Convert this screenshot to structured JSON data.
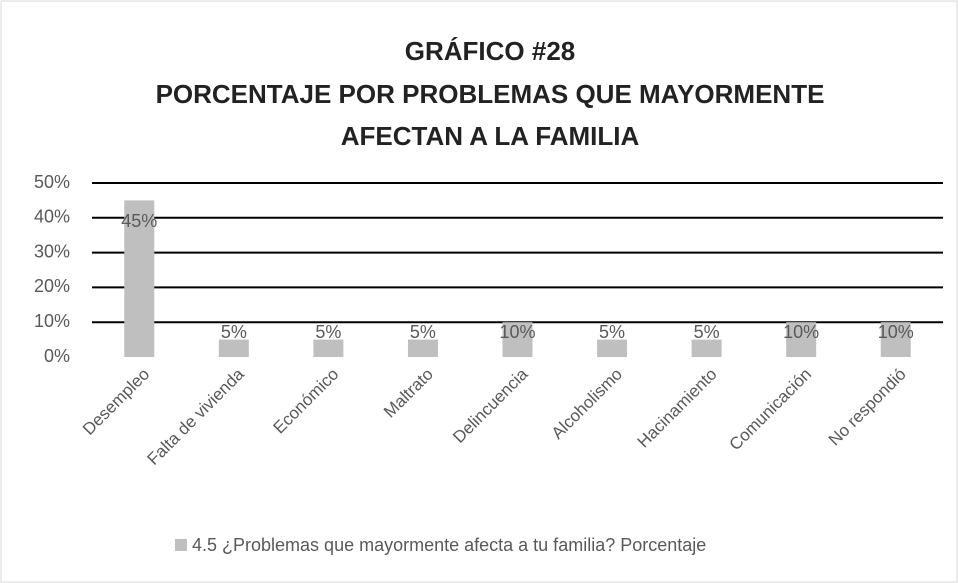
{
  "chart_data": {
    "type": "bar",
    "title": [
      "GRÁFICO #28",
      "PORCENTAJE POR PROBLEMAS QUE MAYORMENTE",
      "AFECTAN A LA FAMILIA"
    ],
    "categories": [
      "Desempleo",
      "Falta de vivienda",
      "Económico",
      "Maltrato",
      "Delincuencia",
      "Alcoholismo",
      "Hacinamiento",
      "Comunicación",
      "No respondió"
    ],
    "series": [
      {
        "name": "4.5 ¿Problemas que mayormente afecta a tu familia? Porcentaje",
        "color": "#bfbfbf",
        "values": [
          45,
          5,
          5,
          5,
          10,
          5,
          5,
          10,
          10
        ],
        "value_labels": [
          "45%",
          "5%",
          "5%",
          "5%",
          "10%",
          "5%",
          "5%",
          "10%",
          "10%"
        ]
      }
    ],
    "ylim": [
      0,
      50
    ],
    "yticks": [
      {
        "value": 0,
        "label": "0%"
      },
      {
        "value": 10,
        "label": "10%"
      },
      {
        "value": 20,
        "label": "20%"
      },
      {
        "value": 30,
        "label": "30%"
      },
      {
        "value": 40,
        "label": "40%"
      },
      {
        "value": 50,
        "label": "50%"
      }
    ],
    "grid": true,
    "legend": "bottom"
  }
}
